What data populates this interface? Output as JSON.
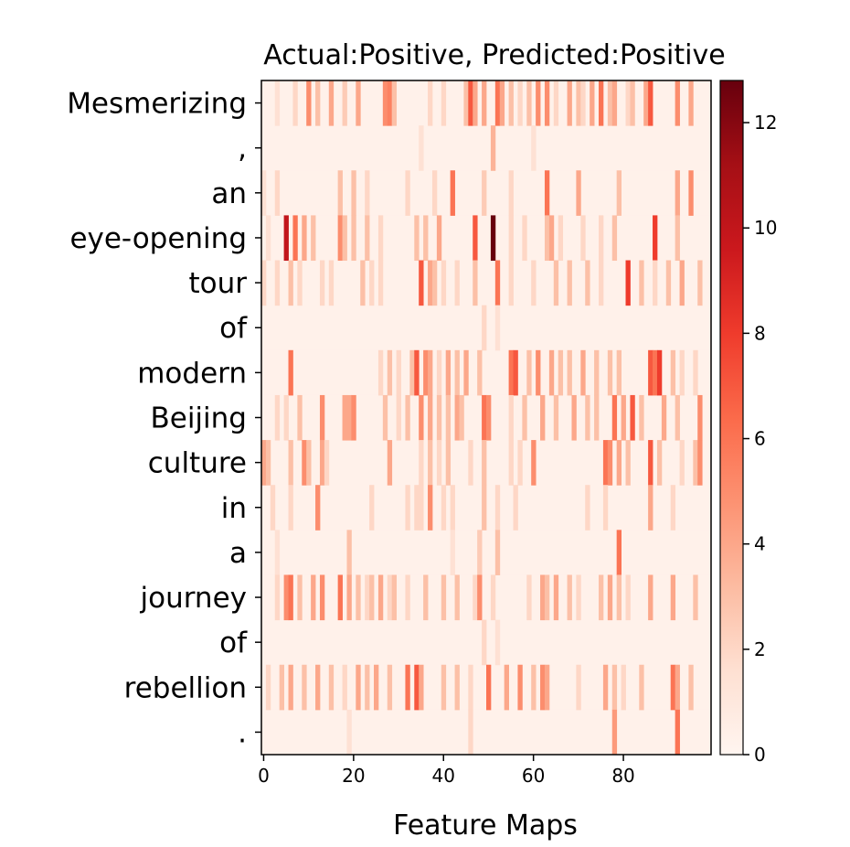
{
  "chart_data": {
    "type": "heatmap",
    "title": "Actual:Positive, Predicted:Positive",
    "xlabel": "Feature Maps",
    "ylabel": "",
    "rows": [
      "Mesmerizing",
      ",",
      "an",
      "eye-opening",
      "tour",
      "of",
      "modern",
      "Beijing",
      "culture",
      "in",
      "a",
      "journey",
      "of",
      "rebellion",
      "."
    ],
    "x_ticks": [
      0,
      20,
      40,
      60,
      80
    ],
    "x_range": [
      0,
      99
    ],
    "colorbar": {
      "min": 0,
      "max": 12.8,
      "ticks": [
        0,
        2,
        4,
        6,
        8,
        10,
        12
      ]
    },
    "colormap": [
      "#fff5f0",
      "#fee0d2",
      "#fcbba1",
      "#fc9272",
      "#fb6a4a",
      "#ef3b2c",
      "#cb181d",
      "#a50f15",
      "#67000d"
    ],
    "background_value": 0.3,
    "hotspots": [
      {
        "row": 0,
        "cols": [
          [
            3,
            1.5
          ],
          [
            7,
            2
          ],
          [
            10,
            5
          ],
          [
            12,
            3
          ],
          [
            15,
            4
          ],
          [
            18,
            2.5
          ],
          [
            21,
            4
          ],
          [
            27,
            5
          ],
          [
            28,
            5.5
          ],
          [
            29,
            3
          ],
          [
            37,
            2
          ],
          [
            40,
            2
          ],
          [
            45,
            3
          ],
          [
            46,
            7
          ],
          [
            47,
            4
          ],
          [
            49,
            4
          ],
          [
            52,
            6
          ],
          [
            53,
            4
          ],
          [
            55,
            3
          ],
          [
            57,
            2
          ],
          [
            59,
            3
          ],
          [
            61,
            5
          ],
          [
            63,
            5
          ],
          [
            65,
            2
          ],
          [
            68,
            4
          ],
          [
            70,
            3
          ],
          [
            71,
            2
          ],
          [
            73,
            4
          ],
          [
            75,
            6
          ],
          [
            77,
            3
          ],
          [
            78,
            4
          ],
          [
            81,
            2
          ],
          [
            82,
            3
          ],
          [
            85,
            4
          ],
          [
            86,
            7
          ],
          [
            92,
            5
          ],
          [
            95,
            4
          ]
        ]
      },
      {
        "row": 1,
        "cols": [
          [
            35,
            1.5
          ],
          [
            51,
            3.5
          ],
          [
            60,
            1.5
          ]
        ]
      },
      {
        "row": 2,
        "cols": [
          [
            0,
            1.5
          ],
          [
            3,
            2
          ],
          [
            17,
            3
          ],
          [
            20,
            3
          ],
          [
            23,
            2
          ],
          [
            32,
            2
          ],
          [
            38,
            2
          ],
          [
            42,
            6
          ],
          [
            49,
            2.5
          ],
          [
            55,
            2
          ],
          [
            63,
            6
          ],
          [
            70,
            4
          ],
          [
            79,
            3
          ],
          [
            92,
            4
          ],
          [
            95,
            5
          ]
        ]
      },
      {
        "row": 3,
        "cols": [
          [
            1,
            1.5
          ],
          [
            5,
            10
          ],
          [
            7,
            6
          ],
          [
            9,
            4
          ],
          [
            11,
            3
          ],
          [
            17,
            5
          ],
          [
            18,
            3
          ],
          [
            20,
            3
          ],
          [
            23,
            3
          ],
          [
            26,
            2
          ],
          [
            34,
            3
          ],
          [
            36,
            3
          ],
          [
            39,
            4
          ],
          [
            47,
            7
          ],
          [
            51,
            12.8
          ],
          [
            55,
            2
          ],
          [
            58,
            2
          ],
          [
            63,
            3
          ],
          [
            64,
            4
          ],
          [
            66,
            2
          ],
          [
            71,
            2
          ],
          [
            75,
            2
          ],
          [
            78,
            3
          ],
          [
            87,
            8
          ],
          [
            92,
            3
          ]
        ]
      },
      {
        "row": 4,
        "cols": [
          [
            0,
            2
          ],
          [
            3,
            2
          ],
          [
            6,
            3
          ],
          [
            8,
            2
          ],
          [
            13,
            2
          ],
          [
            15,
            2
          ],
          [
            22,
            3
          ],
          [
            24,
            2
          ],
          [
            26,
            2
          ],
          [
            35,
            7
          ],
          [
            37,
            4
          ],
          [
            38,
            3
          ],
          [
            40,
            2
          ],
          [
            43,
            2
          ],
          [
            47,
            3
          ],
          [
            52,
            6
          ],
          [
            55,
            2
          ],
          [
            60,
            2
          ],
          [
            65,
            3
          ],
          [
            68,
            3
          ],
          [
            72,
            3
          ],
          [
            75,
            2
          ],
          [
            81,
            8
          ],
          [
            84,
            3
          ],
          [
            87,
            2
          ],
          [
            90,
            3
          ],
          [
            93,
            4
          ],
          [
            97,
            3
          ]
        ]
      },
      {
        "row": 5,
        "cols": [
          [
            49,
            2
          ],
          [
            52,
            1.5
          ]
        ]
      },
      {
        "row": 6,
        "cols": [
          [
            6,
            6
          ],
          [
            26,
            2
          ],
          [
            28,
            3
          ],
          [
            30,
            2
          ],
          [
            33,
            3
          ],
          [
            34,
            7
          ],
          [
            36,
            5
          ],
          [
            37,
            4
          ],
          [
            39,
            2
          ],
          [
            41,
            4
          ],
          [
            43,
            3
          ],
          [
            45,
            4
          ],
          [
            48,
            3
          ],
          [
            55,
            6
          ],
          [
            56,
            7
          ],
          [
            59,
            3
          ],
          [
            61,
            5
          ],
          [
            64,
            4
          ],
          [
            66,
            3
          ],
          [
            68,
            3
          ],
          [
            71,
            4
          ],
          [
            74,
            3
          ],
          [
            77,
            3
          ],
          [
            79,
            3
          ],
          [
            86,
            7
          ],
          [
            87,
            6
          ],
          [
            88,
            8
          ],
          [
            91,
            3
          ],
          [
            93,
            2
          ],
          [
            96,
            2
          ]
        ]
      },
      {
        "row": 7,
        "cols": [
          [
            3,
            2
          ],
          [
            5,
            2
          ],
          [
            8,
            3
          ],
          [
            13,
            5
          ],
          [
            18,
            4
          ],
          [
            19,
            4
          ],
          [
            20,
            5
          ],
          [
            27,
            3
          ],
          [
            30,
            2
          ],
          [
            32,
            3
          ],
          [
            35,
            5
          ],
          [
            37,
            4
          ],
          [
            39,
            3
          ],
          [
            41,
            3
          ],
          [
            43,
            4
          ],
          [
            44,
            3
          ],
          [
            49,
            6
          ],
          [
            50,
            5
          ],
          [
            55,
            2
          ],
          [
            58,
            3
          ],
          [
            62,
            4
          ],
          [
            65,
            3
          ],
          [
            69,
            4
          ],
          [
            72,
            3
          ],
          [
            74,
            3
          ],
          [
            78,
            6
          ],
          [
            80,
            4
          ],
          [
            82,
            7
          ],
          [
            84,
            3
          ],
          [
            89,
            4
          ],
          [
            92,
            3
          ],
          [
            97,
            5
          ]
        ]
      },
      {
        "row": 8,
        "cols": [
          [
            0,
            4
          ],
          [
            1,
            3
          ],
          [
            6,
            3
          ],
          [
            9,
            5
          ],
          [
            10,
            3
          ],
          [
            13,
            4
          ],
          [
            14,
            2
          ],
          [
            28,
            4
          ],
          [
            35,
            2
          ],
          [
            37,
            3
          ],
          [
            39,
            2
          ],
          [
            41,
            3
          ],
          [
            46,
            2
          ],
          [
            49,
            3
          ],
          [
            55,
            2
          ],
          [
            57,
            2
          ],
          [
            60,
            5
          ],
          [
            76,
            6
          ],
          [
            77,
            5
          ],
          [
            79,
            4
          ],
          [
            81,
            3
          ],
          [
            86,
            7
          ],
          [
            88,
            3
          ],
          [
            93,
            2
          ],
          [
            96,
            3
          ],
          [
            97,
            5
          ]
        ]
      },
      {
        "row": 9,
        "cols": [
          [
            2,
            2
          ],
          [
            6,
            2
          ],
          [
            12,
            5
          ],
          [
            24,
            2
          ],
          [
            32,
            2
          ],
          [
            34,
            2
          ],
          [
            35,
            2
          ],
          [
            37,
            5
          ],
          [
            40,
            2
          ],
          [
            42,
            2
          ],
          [
            49,
            3
          ],
          [
            52,
            2
          ],
          [
            56,
            2
          ],
          [
            72,
            2
          ],
          [
            76,
            2
          ],
          [
            86,
            4
          ],
          [
            91,
            2
          ]
        ]
      },
      {
        "row": 10,
        "cols": [
          [
            3,
            1.5
          ],
          [
            19,
            3
          ],
          [
            42,
            1.5
          ],
          [
            48,
            2.5
          ],
          [
            52,
            3
          ],
          [
            79,
            6
          ]
        ]
      },
      {
        "row": 11,
        "cols": [
          [
            3,
            2
          ],
          [
            5,
            5
          ],
          [
            6,
            6
          ],
          [
            8,
            3
          ],
          [
            11,
            4
          ],
          [
            13,
            5
          ],
          [
            17,
            6
          ],
          [
            19,
            4
          ],
          [
            21,
            3
          ],
          [
            23,
            2
          ],
          [
            24,
            3
          ],
          [
            26,
            4
          ],
          [
            28,
            2
          ],
          [
            29,
            3
          ],
          [
            32,
            2
          ],
          [
            36,
            3
          ],
          [
            40,
            3
          ],
          [
            43,
            3
          ],
          [
            47,
            2
          ],
          [
            48,
            5
          ],
          [
            51,
            2
          ],
          [
            59,
            2
          ],
          [
            62,
            4
          ],
          [
            63,
            3
          ],
          [
            65,
            4
          ],
          [
            68,
            3
          ],
          [
            70,
            2
          ],
          [
            75,
            3
          ],
          [
            77,
            4
          ],
          [
            79,
            3
          ],
          [
            81,
            2
          ],
          [
            86,
            4
          ],
          [
            91,
            4
          ],
          [
            96,
            3
          ]
        ]
      },
      {
        "row": 12,
        "cols": [
          [
            49,
            2
          ],
          [
            52,
            1.5
          ]
        ]
      },
      {
        "row": 13,
        "cols": [
          [
            1,
            2
          ],
          [
            4,
            3
          ],
          [
            6,
            4
          ],
          [
            9,
            3
          ],
          [
            12,
            4
          ],
          [
            15,
            3
          ],
          [
            18,
            2
          ],
          [
            21,
            4
          ],
          [
            23,
            3
          ],
          [
            25,
            4
          ],
          [
            28,
            3
          ],
          [
            32,
            6
          ],
          [
            34,
            7
          ],
          [
            35,
            4
          ],
          [
            40,
            3
          ],
          [
            43,
            3
          ],
          [
            46,
            2
          ],
          [
            50,
            6
          ],
          [
            54,
            4
          ],
          [
            57,
            5
          ],
          [
            60,
            3
          ],
          [
            62,
            5
          ],
          [
            63,
            4
          ],
          [
            70,
            2
          ],
          [
            76,
            4
          ],
          [
            78,
            3
          ],
          [
            80,
            2
          ],
          [
            84,
            3
          ],
          [
            91,
            6
          ],
          [
            92,
            4
          ],
          [
            95,
            3
          ]
        ]
      },
      {
        "row": 14,
        "cols": [
          [
            19,
            1.5
          ],
          [
            46,
            2
          ],
          [
            78,
            4.5
          ],
          [
            92,
            6
          ]
        ]
      }
    ]
  }
}
